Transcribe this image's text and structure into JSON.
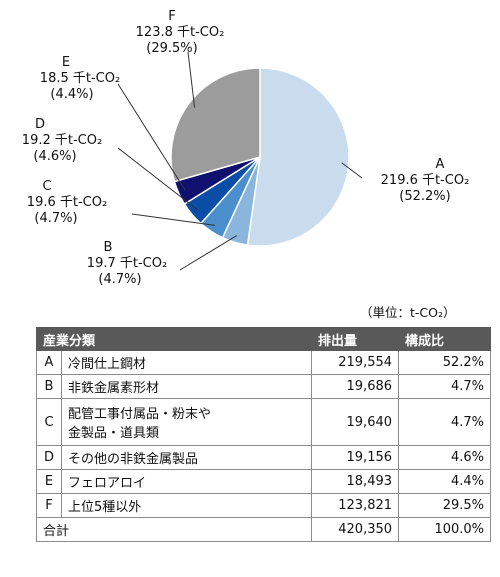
{
  "chart_data": {
    "type": "pie",
    "slices": [
      {
        "code": "A",
        "value": 219.6,
        "value_label": "219.6 千t-CO₂",
        "percent_label": "(52.2%)",
        "color": "#c9dced"
      },
      {
        "code": "B",
        "value": 19.7,
        "value_label": "19.7 千t-CO₂",
        "percent_label": "(4.7%)",
        "color": "#8ab6de"
      },
      {
        "code": "C",
        "value": 19.6,
        "value_label": "19.6 千t-CO₂",
        "percent_label": "(4.7%)",
        "color": "#4a8fcc"
      },
      {
        "code": "D",
        "value": 19.2,
        "value_label": "19.2 千t-CO₂",
        "percent_label": "(4.6%)",
        "color": "#0a4da6"
      },
      {
        "code": "E",
        "value": 18.5,
        "value_label": "18.5 千t-CO₂",
        "percent_label": "(4.4%)",
        "color": "#10106e"
      },
      {
        "code": "F",
        "value": 123.8,
        "value_label": "123.8 千t-CO₂",
        "percent_label": "(29.5%)",
        "color": "#9c9c9c"
      }
    ]
  },
  "table": {
    "unit_note": "（単位：t-CO₂）",
    "headers": {
      "category": "産業分類",
      "emissions": "排出量",
      "share": "構成比"
    },
    "rows": [
      {
        "code": "A",
        "name": "冷間仕上鋼材",
        "name2": "",
        "emissions": "219,554",
        "share": "52.2%"
      },
      {
        "code": "B",
        "name": "非鉄金属素形材",
        "name2": "",
        "emissions": "19,686",
        "share": "4.7%"
      },
      {
        "code": "C",
        "name": "配管工事付属品・粉末や",
        "name2": "金製品・道具類",
        "emissions": "19,640",
        "share": "4.7%"
      },
      {
        "code": "D",
        "name": "その他の非鉄金属製品",
        "name2": "",
        "emissions": "19,156",
        "share": "4.6%"
      },
      {
        "code": "E",
        "name": "フェロアロイ",
        "name2": "",
        "emissions": "18,493",
        "share": "4.4%"
      },
      {
        "code": "F",
        "name": "上位5種以外",
        "name2": "",
        "emissions": "123,821",
        "share": "29.5%"
      }
    ],
    "total": {
      "label": "合計",
      "emissions": "420,350",
      "share": "100.0%"
    }
  }
}
